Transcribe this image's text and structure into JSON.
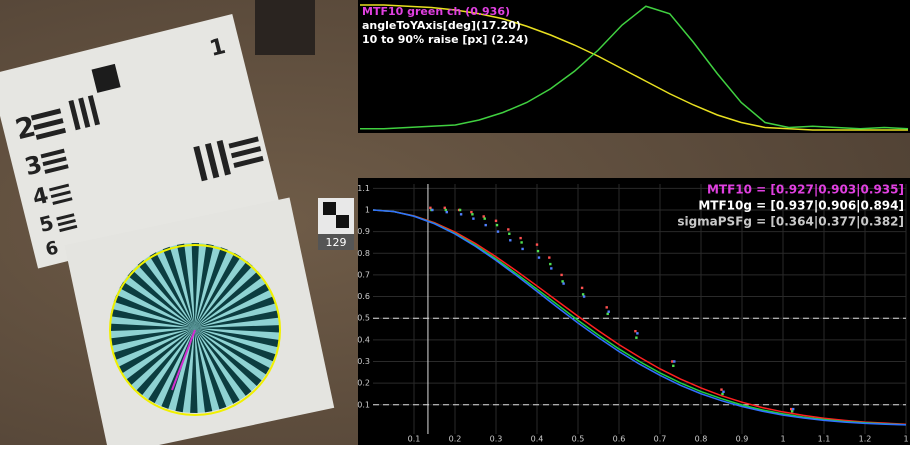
{
  "chart_data": [
    {
      "type": "line",
      "annotations": [
        {
          "text": "MTF10 green ch (0.936)",
          "color": "#e040e0"
        },
        {
          "text": "angleToYAxis[deg](17.20)",
          "color": "#ffffff"
        },
        {
          "text": "10 to 90% raise [px] (2.24)",
          "color": "#ffffff"
        }
      ],
      "ylim": [
        0,
        1
      ],
      "series": [
        {
          "color": "#e8e020",
          "values": [
            1.0,
            1.0,
            0.99,
            0.98,
            0.96,
            0.93,
            0.89,
            0.83,
            0.76,
            0.68,
            0.59,
            0.49,
            0.39,
            0.29,
            0.2,
            0.12,
            0.06,
            0.02,
            0.01,
            0,
            0,
            0,
            0,
            0
          ]
        },
        {
          "color": "#40d040",
          "values": [
            0.01,
            0.01,
            0.02,
            0.03,
            0.04,
            0.08,
            0.14,
            0.22,
            0.33,
            0.47,
            0.64,
            0.84,
            0.99,
            0.93,
            0.7,
            0.45,
            0.22,
            0.06,
            0.02,
            0.03,
            0.02,
            0.01,
            0.02,
            0.01
          ]
        }
      ]
    },
    {
      "type": "line",
      "annotations": [
        {
          "text": "MTF10  = [0.927|0.903|0.935]",
          "color": "#e040e0"
        },
        {
          "text": "MTF10g = [0.937|0.906|0.894]",
          "color": "#ffffff"
        },
        {
          "text": "sigmaPSFg = [0.364|0.377|0.382]",
          "color": "#c8c8c8"
        }
      ],
      "xlim": [
        0,
        1.3
      ],
      "ylim": [
        -0.035,
        1.12
      ],
      "xticks": [
        0.1,
        0.2,
        0.3,
        0.4,
        0.5,
        0.6,
        0.7,
        0.8,
        0.9,
        1,
        1.1,
        1.2,
        {
          "value": 1.3,
          "label": "1"
        }
      ],
      "yticks": [
        0.1,
        0.2,
        0.3,
        0.4,
        0.5,
        0.6,
        0.7,
        0.8,
        0.9,
        1,
        1.1
      ],
      "grid": true,
      "hlines": [
        0.5,
        0.1
      ],
      "vline": 0.134,
      "x": [
        0,
        0.05,
        0.1,
        0.15,
        0.2,
        0.25,
        0.3,
        0.35,
        0.4,
        0.45,
        0.5,
        0.55,
        0.6,
        0.65,
        0.7,
        0.75,
        0.8,
        0.85,
        0.9,
        0.95,
        1,
        1.05,
        1.1,
        1.15,
        1.2,
        1.25,
        1.3
      ],
      "series": [
        {
          "color": "#ff2020",
          "values": [
            1,
            0.993,
            0.973,
            0.941,
            0.898,
            0.845,
            0.784,
            0.718,
            0.649,
            0.579,
            0.509,
            0.442,
            0.378,
            0.32,
            0.266,
            0.219,
            0.178,
            0.142,
            0.112,
            0.087,
            0.067,
            0.051,
            0.038,
            0.028,
            0.02,
            0.015,
            0.01
          ]
        },
        {
          "color": "#20d040",
          "values": [
            1,
            0.993,
            0.972,
            0.938,
            0.892,
            0.837,
            0.774,
            0.705,
            0.634,
            0.562,
            0.49,
            0.422,
            0.358,
            0.3,
            0.247,
            0.201,
            0.161,
            0.128,
            0.099,
            0.076,
            0.058,
            0.043,
            0.032,
            0.023,
            0.017,
            0.012,
            0.008
          ]
        },
        {
          "color": "#3070ff",
          "values": [
            1,
            0.993,
            0.971,
            0.936,
            0.889,
            0.832,
            0.767,
            0.697,
            0.624,
            0.55,
            0.478,
            0.41,
            0.346,
            0.288,
            0.236,
            0.19,
            0.151,
            0.119,
            0.092,
            0.07,
            0.052,
            0.039,
            0.028,
            0.02,
            0.014,
            0.01,
            0.007
          ]
        }
      ],
      "points_x": [
        0.14,
        0.175,
        0.21,
        0.24,
        0.27,
        0.3,
        0.33,
        0.36,
        0.4,
        0.43,
        0.46,
        0.51,
        0.57,
        0.64,
        0.73,
        0.85,
        1.02
      ],
      "points": [
        {
          "color": "#ff5050",
          "values": [
            1.01,
            1.01,
            1.0,
            0.99,
            0.97,
            0.95,
            0.91,
            0.87,
            0.84,
            0.78,
            0.7,
            0.64,
            0.55,
            0.44,
            0.3,
            0.17,
            0.08
          ]
        },
        {
          "color": "#50e050",
          "values": [
            1.0,
            1.0,
            1.0,
            0.98,
            0.96,
            0.93,
            0.89,
            0.85,
            0.81,
            0.75,
            0.67,
            0.61,
            0.52,
            0.41,
            0.28,
            0.15,
            0.07
          ]
        },
        {
          "color": "#5080ff",
          "values": [
            1.0,
            0.99,
            0.98,
            0.96,
            0.93,
            0.9,
            0.86,
            0.82,
            0.78,
            0.73,
            0.66,
            0.6,
            0.53,
            0.43,
            0.3,
            0.16,
            0.08
          ]
        }
      ]
    }
  ],
  "scene": {
    "tag_label": "129",
    "target_digits": [
      "2",
      "3",
      "4",
      "5",
      "6",
      "1"
    ]
  }
}
